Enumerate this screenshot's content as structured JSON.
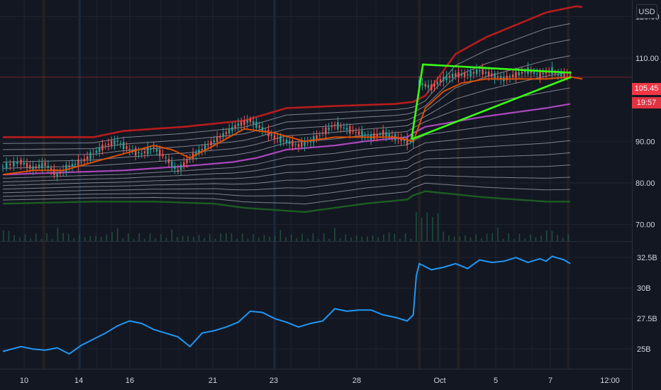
{
  "toolbar": {
    "currency": "USD"
  },
  "price_tag": {
    "last": "105.45",
    "countdown": "19:57"
  },
  "colors": {
    "background": "#131722",
    "grid": "#1f2431",
    "price": "#d1d4dc",
    "upper_band": "#b71c1c",
    "lower_band": "#1b5e20",
    "mid_band": "#ab47bc",
    "band_lines": "#9a9ea8",
    "moving_average": "#e65100",
    "pattern": "#39ff14",
    "volume_line": "#2196f3",
    "candle_up": "#26a69a",
    "candle_down": "#ef5350"
  },
  "chart_data": [
    {
      "type": "line",
      "panel": "price",
      "x_tick_labels": [
        "10",
        "14",
        "16",
        "21",
        "23",
        "28",
        "Oct",
        "5",
        "7",
        "12:00"
      ],
      "y_tick_labels": [
        "120.00",
        "110.00",
        "90.00",
        "80.00",
        "70.00"
      ],
      "ylim": [
        66,
        124
      ],
      "last_value": 105.45,
      "series": [
        {
          "role": "price",
          "points": [
            [
              0,
              84
            ],
            [
              3,
              85
            ],
            [
              5,
              83.5
            ],
            [
              7,
              84.5
            ],
            [
              9,
              82
            ],
            [
              11,
              84
            ],
            [
              13,
              85
            ],
            [
              15,
              87
            ],
            [
              17,
              89
            ],
            [
              19,
              90
            ],
            [
              21,
              88
            ],
            [
              23,
              87
            ],
            [
              25,
              88.5
            ],
            [
              27,
              86
            ],
            [
              29,
              83
            ],
            [
              31,
              86
            ],
            [
              33,
              88
            ],
            [
              35,
              90
            ],
            [
              37,
              92
            ],
            [
              39,
              94
            ],
            [
              41,
              95
            ],
            [
              43,
              93
            ],
            [
              45,
              91
            ],
            [
              47,
              90
            ],
            [
              49,
              89
            ],
            [
              51,
              90
            ],
            [
              53,
              92
            ],
            [
              55,
              94
            ],
            [
              57,
              93
            ],
            [
              59,
              92
            ],
            [
              61,
              91
            ],
            [
              63,
              92
            ],
            [
              65,
              91
            ],
            [
              67,
              90
            ],
            [
              68,
              90
            ],
            [
              68.5,
              98
            ],
            [
              69,
              104
            ],
            [
              71,
              103
            ],
            [
              73,
              105
            ],
            [
              75,
              106
            ],
            [
              77,
              106
            ],
            [
              79,
              107
            ],
            [
              81,
              106
            ],
            [
              83,
              105
            ],
            [
              85,
              106
            ],
            [
              87,
              107
            ],
            [
              89,
              106
            ],
            [
              91,
              107
            ],
            [
              92,
              106
            ],
            [
              93,
              106
            ],
            [
              94,
              106
            ]
          ]
        },
        {
          "role": "moving-average",
          "points": [
            [
              0,
              82
            ],
            [
              5,
              83
            ],
            [
              10,
              83
            ],
            [
              15,
              85
            ],
            [
              20,
              87
            ],
            [
              25,
              89
            ],
            [
              28,
              88
            ],
            [
              31,
              86
            ],
            [
              35,
              89
            ],
            [
              40,
              93
            ],
            [
              45,
              92
            ],
            [
              50,
              90
            ],
            [
              55,
              91
            ],
            [
              60,
              91
            ],
            [
              65,
              91
            ],
            [
              68,
              90
            ],
            [
              70,
              98
            ],
            [
              73,
              102
            ],
            [
              76,
              104
            ],
            [
              80,
              105
            ],
            [
              85,
              105
            ],
            [
              90,
              105
            ],
            [
              94,
              105.5
            ],
            [
              96,
              105
            ]
          ]
        },
        {
          "role": "upper-band",
          "points": [
            [
              0,
              91
            ],
            [
              15,
              91
            ],
            [
              20,
              92.5
            ],
            [
              30,
              93.5
            ],
            [
              40,
              95
            ],
            [
              47,
              98
            ],
            [
              55,
              98.5
            ],
            [
              65,
              99
            ],
            [
              68,
              99.5
            ],
            [
              70,
              101
            ],
            [
              75,
              111
            ],
            [
              80,
              115
            ],
            [
              85,
              118
            ],
            [
              90,
              121
            ],
            [
              95,
              122.5
            ],
            [
              96,
              122.3
            ]
          ]
        },
        {
          "role": "mid-band",
          "points": [
            [
              0,
              82
            ],
            [
              20,
              83
            ],
            [
              30,
              84
            ],
            [
              38,
              85
            ],
            [
              42,
              86
            ],
            [
              47,
              88
            ],
            [
              55,
              89
            ],
            [
              60,
              90
            ],
            [
              67,
              91
            ],
            [
              68,
              92
            ],
            [
              70,
              93.5
            ],
            [
              80,
              96
            ],
            [
              90,
              98
            ],
            [
              94,
              99
            ]
          ]
        },
        {
          "role": "lower-band",
          "points": [
            [
              0,
              75
            ],
            [
              15,
              75.5
            ],
            [
              25,
              75.5
            ],
            [
              35,
              75
            ],
            [
              40,
              74
            ],
            [
              45,
              73.5
            ],
            [
              50,
              73
            ],
            [
              55,
              74
            ],
            [
              60,
              75
            ],
            [
              67,
              76
            ],
            [
              68,
              77
            ],
            [
              70,
              78
            ],
            [
              80,
              76.5
            ],
            [
              90,
              75.5
            ],
            [
              94,
              75.5
            ]
          ]
        }
      ],
      "band_lines_above": 5,
      "band_lines_below": 7,
      "pattern_lines": [
        [
          [
            67.7,
            90.5
          ],
          [
            69.6,
            108.5
          ],
          [
            94.2,
            106.5
          ]
        ],
        [
          [
            67.7,
            90.5
          ],
          [
            94.2,
            105.5
          ]
        ]
      ]
    },
    {
      "type": "line",
      "panel": "volume",
      "name": "",
      "y_tick_labels": [
        "32.5B",
        "30B",
        "27.5B",
        "25B"
      ],
      "ylim": [
        23.5,
        33.5
      ],
      "points": [
        [
          0,
          24.8
        ],
        [
          3,
          25.2
        ],
        [
          5,
          25
        ],
        [
          7,
          24.9
        ],
        [
          9,
          25.1
        ],
        [
          11,
          24.6
        ],
        [
          13,
          25.3
        ],
        [
          15,
          25.8
        ],
        [
          17,
          26.3
        ],
        [
          19,
          26.9
        ],
        [
          21,
          27.3
        ],
        [
          23,
          27.1
        ],
        [
          25,
          26.6
        ],
        [
          27,
          26.3
        ],
        [
          29,
          26
        ],
        [
          31,
          25.2
        ],
        [
          33,
          26.3
        ],
        [
          35,
          26.5
        ],
        [
          37,
          26.8
        ],
        [
          39,
          27.2
        ],
        [
          41,
          28.1
        ],
        [
          43,
          28
        ],
        [
          45,
          27.5
        ],
        [
          47,
          27.2
        ],
        [
          49,
          26.8
        ],
        [
          51,
          27.1
        ],
        [
          53,
          27.3
        ],
        [
          55,
          28.3
        ],
        [
          57,
          28.1
        ],
        [
          59,
          28.2
        ],
        [
          61,
          28.2
        ],
        [
          63,
          27.8
        ],
        [
          65,
          27.6
        ],
        [
          67,
          27.3
        ],
        [
          68,
          27.8
        ],
        [
          68.5,
          31
        ],
        [
          69,
          32
        ],
        [
          71,
          31.5
        ],
        [
          73,
          31.7
        ],
        [
          75,
          32
        ],
        [
          77,
          31.6
        ],
        [
          79,
          32.3
        ],
        [
          81,
          32.1
        ],
        [
          83,
          32.2
        ],
        [
          85,
          32.5
        ],
        [
          87,
          32.1
        ],
        [
          89,
          32.4
        ],
        [
          90,
          32.2
        ],
        [
          91,
          32.6
        ],
        [
          93,
          32.3
        ],
        [
          94,
          32
        ]
      ]
    }
  ]
}
